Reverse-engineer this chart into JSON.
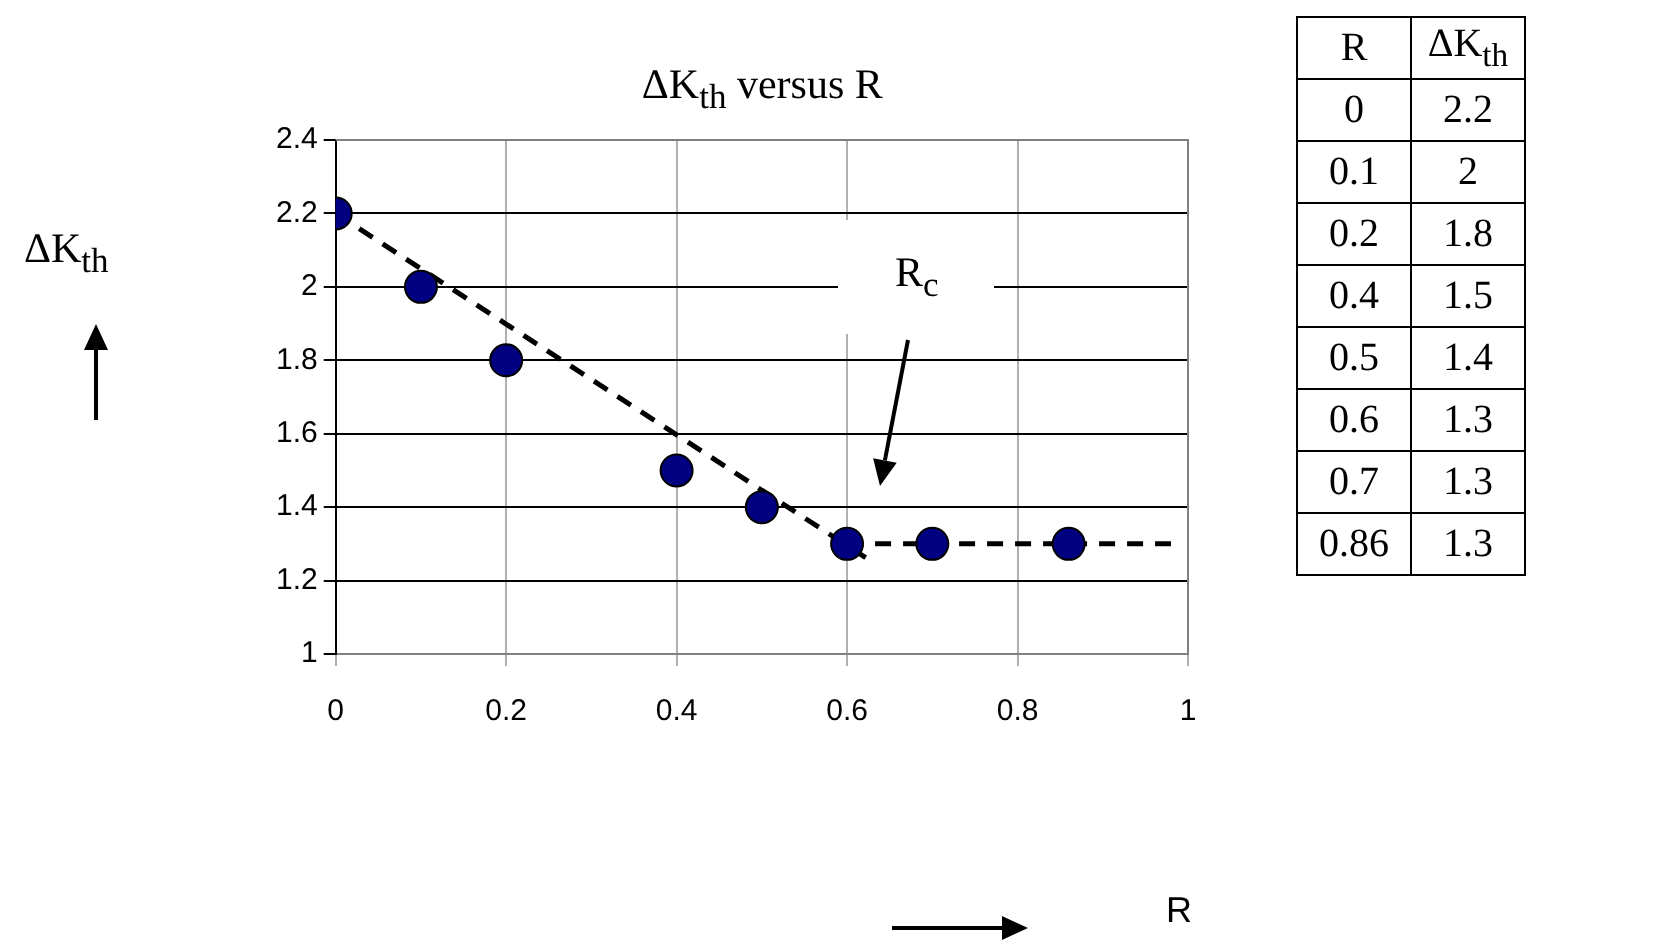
{
  "chart_data": [
    {
      "type": "scatter",
      "title": "ΔK$_{th}$ versus R",
      "xlabel": "R",
      "ylabel": "ΔK$_{th}$",
      "x": [
        0,
        0.1,
        0.2,
        0.4,
        0.5,
        0.6,
        0.7,
        0.86
      ],
      "series": [
        {
          "color": "#000080",
          "values": [
            2.2,
            2,
            1.8,
            1.5,
            1.4,
            1.3,
            1.3,
            1.3
          ],
          "marker": "circle"
        },
        {
          "type": "line",
          "color": "#000000",
          "x": [
            0,
            0.63
          ],
          "values": [
            2.2,
            1.25
          ],
          "marker": "none",
          "line_style": "dashed"
        },
        {
          "type": "line",
          "color": "#000000",
          "x": [
            0.6,
            0.98
          ],
          "values": [
            1.3,
            1.3
          ],
          "marker": "none",
          "line_style": "dashed"
        }
      ],
      "annotations": [
        "R$_{c}$"
      ],
      "xlim": [
        0,
        1
      ],
      "xticks": [
        0,
        0.2,
        0.4,
        0.6,
        0.8,
        1
      ],
      "ylim": [
        1,
        2.4
      ],
      "yticks": [
        1,
        1.2,
        1.4,
        1.6,
        1.8,
        2,
        2.2,
        2.4
      ],
      "grid": true,
      "legend": false
    },
    {
      "type": "other",
      "categories": [
        "R",
        "ΔK$_{th}$"
      ],
      "cells": [
        [
          "0",
          "2.2"
        ],
        [
          "0.1",
          "2"
        ],
        [
          "0.2",
          "1.8"
        ],
        [
          "0.4",
          "1.5"
        ],
        [
          "0.5",
          "1.4"
        ],
        [
          "0.6",
          "1.3"
        ],
        [
          "0.7",
          "1.3"
        ],
        [
          "0.86",
          "1.3"
        ]
      ]
    }
  ]
}
